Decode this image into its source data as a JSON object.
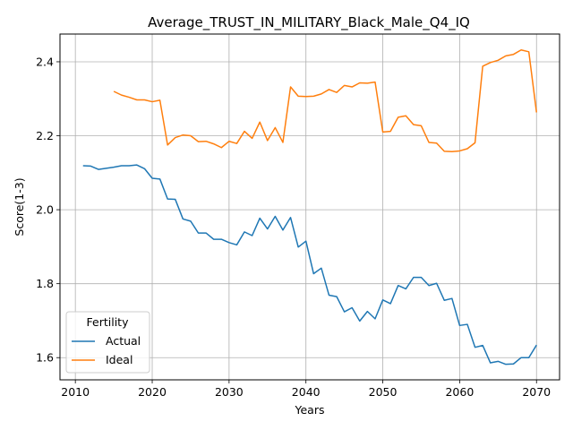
{
  "chart_data": {
    "type": "line",
    "title": "Average_TRUST_IN_MILITARY_Black_Male_Q4_IQ",
    "xlabel": "Years",
    "ylabel": "Score(1-3)",
    "xlim": [
      2008,
      2073
    ],
    "ylim": [
      1.54,
      2.475
    ],
    "xticks": [
      2010,
      2020,
      2030,
      2040,
      2050,
      2060,
      2070
    ],
    "xtick_labels": [
      "2010",
      "2020",
      "2030",
      "2040",
      "2050",
      "2060",
      "2070"
    ],
    "yticks": [
      1.6,
      1.8,
      2.0,
      2.2,
      2.4
    ],
    "ytick_labels": [
      "1.6",
      "1.8",
      "2.0",
      "2.2",
      "2.4"
    ],
    "grid": true,
    "legend": {
      "title": "Fertility",
      "position": "lower-left"
    },
    "series": [
      {
        "name": "Actual",
        "color": "#1f77b4",
        "x": [
          2011,
          2012,
          2013,
          2014,
          2015,
          2016,
          2017,
          2018,
          2019,
          2020,
          2021,
          2022,
          2023,
          2024,
          2025,
          2026,
          2027,
          2028,
          2029,
          2030,
          2031,
          2032,
          2033,
          2034,
          2035,
          2036,
          2037,
          2038,
          2039,
          2040,
          2041,
          2042,
          2043,
          2044,
          2045,
          2046,
          2047,
          2048,
          2049,
          2050,
          2051,
          2052,
          2053,
          2054,
          2055,
          2056,
          2057,
          2058,
          2059,
          2060,
          2061,
          2062,
          2063,
          2064,
          2065,
          2066,
          2067,
          2068,
          2069,
          2070
        ],
        "y": [
          2.119,
          2.118,
          2.109,
          2.112,
          2.115,
          2.119,
          2.119,
          2.121,
          2.111,
          2.085,
          2.083,
          2.029,
          2.028,
          1.975,
          1.969,
          1.937,
          1.937,
          1.92,
          1.92,
          1.911,
          1.905,
          1.94,
          1.93,
          1.977,
          1.948,
          1.982,
          1.945,
          1.979,
          1.899,
          1.915,
          1.827,
          1.842,
          1.769,
          1.765,
          1.724,
          1.735,
          1.699,
          1.725,
          1.705,
          1.756,
          1.746,
          1.795,
          1.786,
          1.817,
          1.817,
          1.795,
          1.801,
          1.755,
          1.76,
          1.687,
          1.69,
          1.628,
          1.633,
          1.586,
          1.59,
          1.582,
          1.583,
          1.6,
          1.6,
          1.634
        ]
      },
      {
        "name": "Ideal",
        "color": "#ff7f0e",
        "x": [
          2015,
          2016,
          2017,
          2018,
          2019,
          2020,
          2021,
          2022,
          2023,
          2024,
          2025,
          2026,
          2027,
          2028,
          2029,
          2030,
          2031,
          2032,
          2033,
          2034,
          2035,
          2036,
          2037,
          2038,
          2039,
          2040,
          2041,
          2042,
          2043,
          2044,
          2045,
          2046,
          2047,
          2048,
          2049,
          2050,
          2051,
          2052,
          2053,
          2054,
          2055,
          2056,
          2057,
          2058,
          2059,
          2060,
          2061,
          2062,
          2063,
          2064,
          2065,
          2066,
          2067,
          2068,
          2069,
          2070
        ],
        "y": [
          2.32,
          2.31,
          2.304,
          2.297,
          2.297,
          2.292,
          2.296,
          2.175,
          2.195,
          2.202,
          2.2,
          2.184,
          2.185,
          2.178,
          2.168,
          2.185,
          2.179,
          2.212,
          2.193,
          2.237,
          2.187,
          2.222,
          2.182,
          2.332,
          2.307,
          2.306,
          2.307,
          2.313,
          2.325,
          2.317,
          2.336,
          2.332,
          2.343,
          2.342,
          2.345,
          2.21,
          2.212,
          2.25,
          2.254,
          2.23,
          2.227,
          2.182,
          2.18,
          2.158,
          2.157,
          2.159,
          2.165,
          2.181,
          2.388,
          2.398,
          2.404,
          2.416,
          2.42,
          2.432,
          2.427,
          2.263
        ]
      }
    ]
  }
}
